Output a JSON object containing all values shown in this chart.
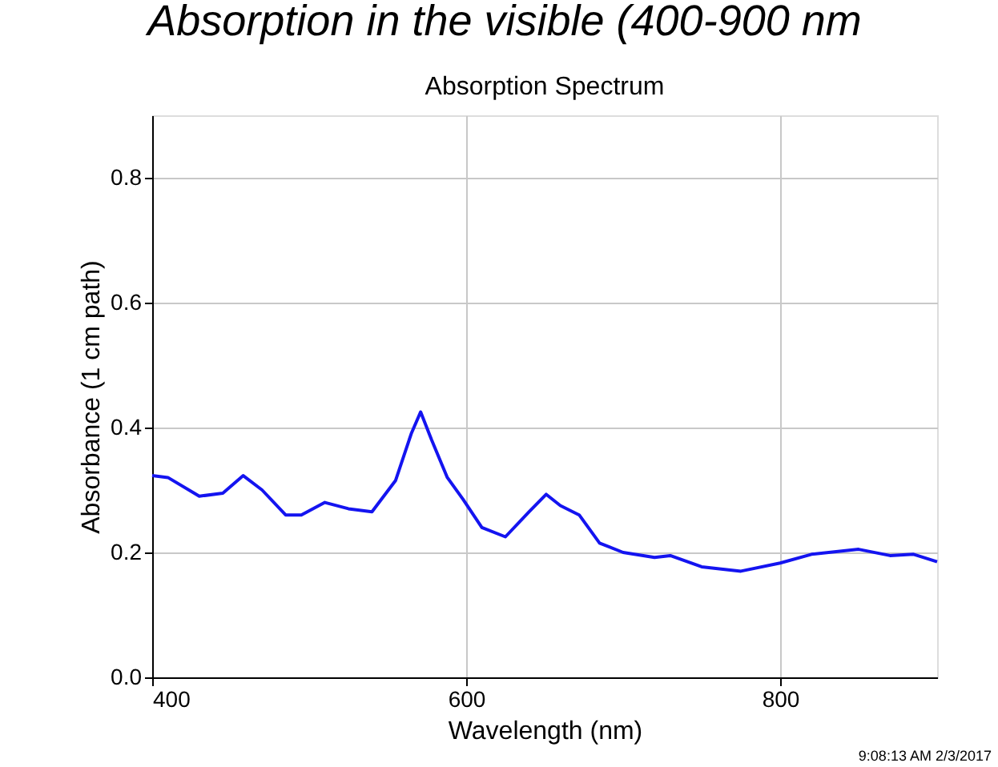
{
  "chart_data": {
    "type": "line",
    "title": "Absorption Spectrum",
    "xlabel": "Wavelength (nm)",
    "ylabel": "Absorbance (1 cm path)",
    "annotations": [
      "Absorption in the visible (400-900 nm",
      "9:08:13 AM 2/3/2017"
    ],
    "x": [
      400,
      410,
      430,
      445,
      458,
      470,
      485,
      495,
      510,
      525,
      540,
      555,
      565,
      571,
      578,
      588,
      598,
      610,
      625,
      640,
      651,
      660,
      672,
      685,
      700,
      720,
      730,
      750,
      775,
      800,
      820,
      850,
      870,
      885,
      900
    ],
    "series": [
      {
        "color": "#1414f0",
        "values": [
          0.323,
          0.32,
          0.29,
          0.295,
          0.323,
          0.3,
          0.26,
          0.26,
          0.28,
          0.27,
          0.265,
          0.315,
          0.39,
          0.425,
          0.38,
          0.32,
          0.285,
          0.24,
          0.225,
          0.265,
          0.293,
          0.275,
          0.26,
          0.215,
          0.2,
          0.192,
          0.195,
          0.177,
          0.17,
          0.183,
          0.197,
          0.205,
          0.195,
          0.197,
          0.185
        ]
      }
    ],
    "xlim": [
      400,
      900
    ],
    "xticks": [
      400,
      600,
      800
    ],
    "ylim": [
      0,
      0.9
    ],
    "yticks": [
      {
        "value": 0,
        "label": "0.0"
      },
      0.2,
      0.4,
      0.6,
      0.8
    ],
    "grid": true,
    "marker": "none",
    "line_style": "solid"
  }
}
